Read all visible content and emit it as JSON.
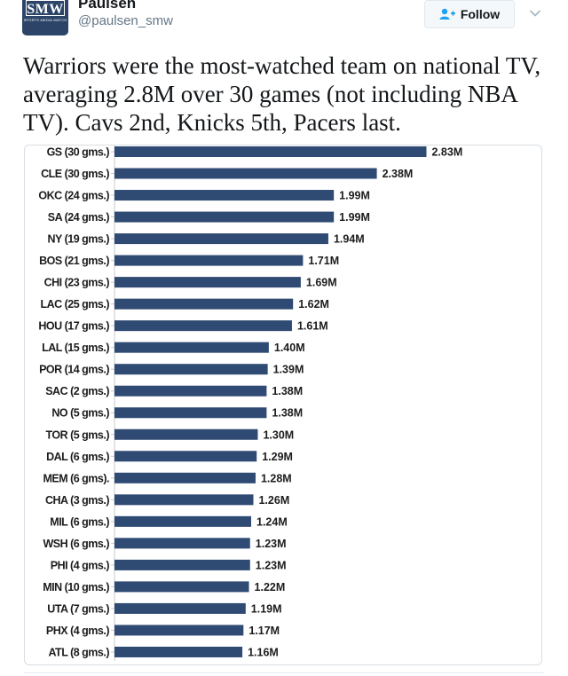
{
  "header": {
    "display_name": "Paulsen",
    "handle": "@paulsen_smw",
    "avatar_text": "SMW",
    "avatar_subtext": "SPORTS MEDIA WATCH",
    "follow_label": "Follow"
  },
  "tweet": {
    "text": "Warriors were the most-watched team on national TV, averaging 2.8M over 30 games (not including NBA TV). Cavs 2nd, Knicks 5th, Pacers last."
  },
  "colors": {
    "bar": "#2f4a73",
    "avatar_bg": "#2b4468",
    "follow_icon": "#1da1f2"
  },
  "icons": {
    "follow": "add-user-icon",
    "more": "chevron-down-icon"
  },
  "chart_data": {
    "type": "bar",
    "orientation": "horizontal",
    "categories": [
      "GS (30 gms.)",
      "CLE (30 gms.)",
      "OKC (24 gms.)",
      "SA (24 gms.)",
      "NY (19 gms.)",
      "BOS (21 gms.)",
      "CHI (23 gms.)",
      "LAC (25 gms.)",
      "HOU (17 gms.)",
      "LAL (15 gms.)",
      "POR (14 gms.)",
      "SAC (2 gms.)",
      "NO (5 gms.)",
      "TOR (5 gms.)",
      "DAL (6 gms.)",
      "MEM (6 gms).",
      "CHA (3 gms.)",
      "MIL (6 gms.)",
      "WSH (6 gms.)",
      "PHI (4 gms.)",
      "MIN (10 gms.)",
      "UTA (7 gms.)",
      "PHX (4 gms.)",
      "ATL (8 gms.)"
    ],
    "values": [
      2.83,
      2.38,
      1.99,
      1.99,
      1.94,
      1.71,
      1.69,
      1.62,
      1.61,
      1.4,
      1.39,
      1.38,
      1.38,
      1.3,
      1.29,
      1.28,
      1.26,
      1.24,
      1.23,
      1.23,
      1.22,
      1.19,
      1.17,
      1.16
    ],
    "value_labels": [
      "2.83M",
      "2.38M",
      "1.99M",
      "1.99M",
      "1.94M",
      "1.71M",
      "1.69M",
      "1.62M",
      "1.61M",
      "1.40M",
      "1.39M",
      "1.38M",
      "1.38M",
      "1.30M",
      "1.29M",
      "1.28M",
      "1.26M",
      "1.24M",
      "1.23M",
      "1.23M",
      "1.22M",
      "1.19M",
      "1.17M",
      "1.16M"
    ],
    "unit": "M",
    "title": "",
    "xlabel": "",
    "ylabel": "",
    "xlim": [
      0,
      2.83
    ],
    "grid": false,
    "legend": "none"
  }
}
